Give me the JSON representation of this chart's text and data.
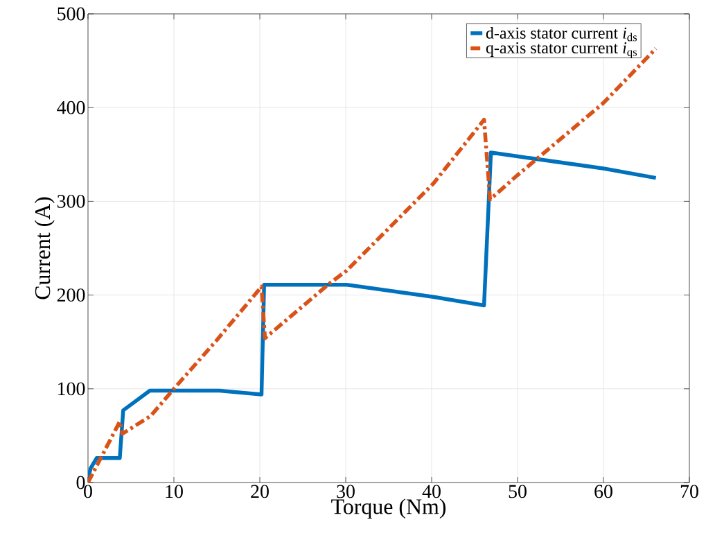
{
  "chart_data": {
    "type": "line",
    "xlabel": "Torque (Nm)",
    "ylabel": "Current (A)",
    "series": [
      {
        "name": "d-axis stator current *i*$_{ds}$",
        "color": "#0072bd",
        "line_style": "solid",
        "x": [
          0,
          0.3,
          1,
          3.7,
          4.1,
          7.2,
          15.3,
          20.2,
          20.5,
          30.1,
          40.2,
          46.1,
          46.9,
          50,
          60,
          66.1
        ],
        "values": [
          3,
          15,
          26,
          26,
          77,
          98,
          98,
          94,
          211,
          211,
          198,
          189,
          352,
          348,
          335,
          325
        ]
      },
      {
        "name": "q-axis stator current *i*$_{qs}$",
        "color": "#d95319",
        "line_style": "dashed",
        "x": [
          0,
          3.7,
          4.0,
          7.3,
          10,
          15,
          20.2,
          20.6,
          28.2,
          30.1,
          40.2,
          46.1,
          46.8,
          50,
          60,
          66.1
        ],
        "values": [
          0,
          65,
          52,
          71,
          100,
          152,
          209,
          154,
          213,
          226,
          319,
          387,
          302,
          328,
          405,
          463
        ]
      }
    ],
    "xlim": [
      0,
      70
    ],
    "ylim": [
      0,
      500
    ],
    "xticks": [
      0,
      10,
      20,
      30,
      40,
      50,
      60,
      70
    ],
    "yticks": [
      0,
      100,
      200,
      300,
      400,
      500
    ],
    "grid": true,
    "legend": "top right",
    "marker": "none"
  }
}
